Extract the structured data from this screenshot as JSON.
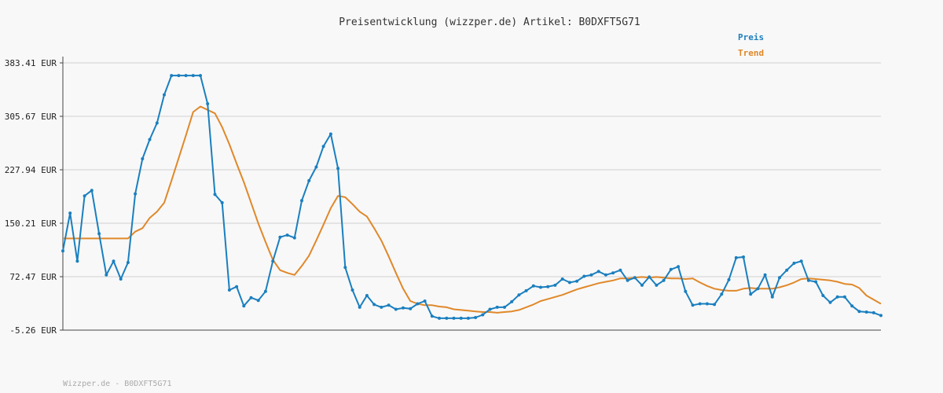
{
  "chart_data": {
    "type": "line",
    "title": "Preisentwicklung (wizzper.de) Artikel: B0DXFT5G71",
    "footer": "Wizzper.de - B0DXFT5G71",
    "ylim": [
      -5.26,
      383.41
    ],
    "y_ticks": [
      "383.41 EUR",
      "305.67 EUR",
      "227.94 EUR",
      "150.21 EUR",
      "72.47 EUR",
      "-5.26 EUR"
    ],
    "y_tick_values": [
      383.41,
      305.67,
      227.94,
      150.21,
      72.47,
      -5.26
    ],
    "grid": true,
    "legend_position": "top-right",
    "colors": {
      "preis": "#1a7fbf",
      "trend": "#e0882a",
      "grid": "#dddddd",
      "axis": "#444444"
    },
    "series": [
      {
        "name": "Preis",
        "values": [
          110,
          165,
          95,
          190,
          198,
          135,
          75,
          95,
          69,
          93,
          193,
          244,
          272,
          296,
          337,
          365,
          365,
          365,
          365,
          365,
          324,
          192,
          180,
          53,
          58,
          30,
          42,
          38,
          51,
          95,
          130,
          133,
          129,
          183,
          212,
          232,
          262,
          280,
          230,
          86,
          53,
          28,
          45,
          32,
          28,
          31,
          25,
          27,
          26,
          33,
          37,
          15,
          12,
          12,
          12,
          12,
          12,
          13,
          17,
          25,
          28,
          28,
          36,
          46,
          52,
          59,
          57,
          58,
          60,
          69,
          64,
          66,
          73,
          75,
          80,
          75,
          78,
          82,
          67,
          71,
          60,
          72,
          60,
          67,
          83,
          87,
          51,
          31,
          33,
          33,
          32,
          47,
          68,
          100,
          101,
          47,
          55,
          75,
          43,
          71,
          82,
          92,
          95,
          67,
          65,
          45,
          35,
          43,
          43,
          30,
          22,
          21,
          20,
          16
        ]
      },
      {
        "name": "Trend",
        "values": [
          128,
          128,
          128,
          128,
          128,
          128,
          128,
          128,
          128,
          128,
          138,
          143,
          158,
          167,
          180,
          212,
          245,
          278,
          312,
          320,
          315,
          310,
          290,
          265,
          237,
          210,
          180,
          150,
          123,
          97,
          82,
          78,
          75,
          88,
          103,
          125,
          148,
          172,
          190,
          188,
          178,
          167,
          160,
          143,
          125,
          102,
          78,
          55,
          37,
          33,
          31,
          31,
          29,
          28,
          25,
          24,
          23,
          22,
          21,
          21,
          20,
          21,
          22,
          24,
          28,
          32,
          37,
          40,
          43,
          46,
          50,
          54,
          57,
          60,
          63,
          65,
          67,
          70,
          70,
          71,
          72,
          71,
          72,
          71,
          70,
          70,
          69,
          70,
          64,
          59,
          55,
          53,
          52,
          52,
          55,
          56,
          55,
          55,
          55,
          57,
          60,
          64,
          69,
          70,
          69,
          68,
          67,
          65,
          62,
          61,
          56,
          45,
          39,
          33
        ]
      }
    ]
  }
}
